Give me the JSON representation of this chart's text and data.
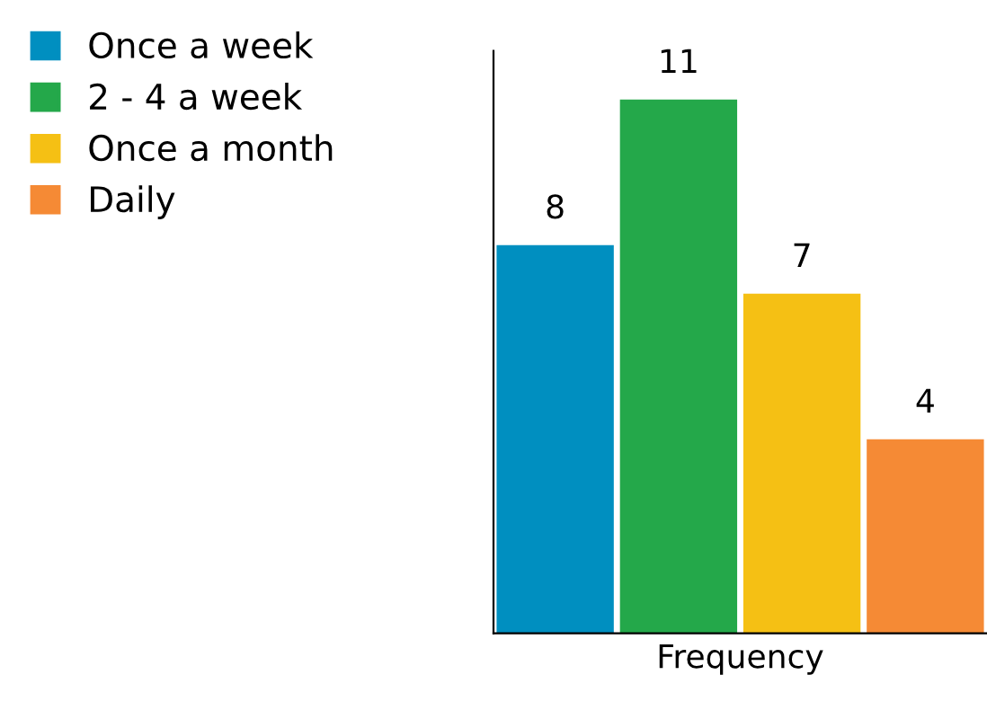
{
  "chart_data": {
    "type": "bar",
    "xlabel": "Frequency",
    "categories": [
      null
    ],
    "series": [
      {
        "name": "Once a week",
        "color": "#008fc0",
        "values": [
          8
        ]
      },
      {
        "name": "2 - 4 a week",
        "color": "#24a84a",
        "values": [
          11
        ]
      },
      {
        "name": "Once a month",
        "color": "#f5c014",
        "values": [
          7
        ]
      },
      {
        "name": "Daily",
        "color": "#f58a35",
        "values": [
          4
        ]
      }
    ],
    "ylim": [
      0,
      12
    ],
    "data_labels": true,
    "legend": "left",
    "tick_labels": false
  }
}
